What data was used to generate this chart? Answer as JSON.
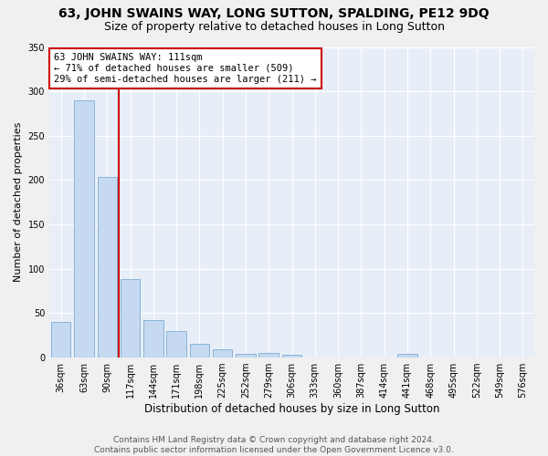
{
  "title": "63, JOHN SWAINS WAY, LONG SUTTON, SPALDING, PE12 9DQ",
  "subtitle": "Size of property relative to detached houses in Long Sutton",
  "xlabel": "Distribution of detached houses by size in Long Sutton",
  "ylabel": "Number of detached properties",
  "bar_labels": [
    "36sqm",
    "63sqm",
    "90sqm",
    "117sqm",
    "144sqm",
    "171sqm",
    "198sqm",
    "225sqm",
    "252sqm",
    "279sqm",
    "306sqm",
    "333sqm",
    "360sqm",
    "387sqm",
    "414sqm",
    "441sqm",
    "468sqm",
    "495sqm",
    "522sqm",
    "549sqm",
    "576sqm"
  ],
  "bar_values": [
    40,
    290,
    204,
    88,
    42,
    30,
    16,
    9,
    4,
    5,
    3,
    0,
    0,
    0,
    0,
    4,
    0,
    0,
    0,
    0,
    0
  ],
  "bar_color": "#c5d9f0",
  "bar_edgecolor": "#7aadd4",
  "vline_color": "#cc0000",
  "annotation_text": "63 JOHN SWAINS WAY: 111sqm\n← 71% of detached houses are smaller (509)\n29% of semi-detached houses are larger (211) →",
  "annotation_box_color": "#ffffff",
  "annotation_box_edgecolor": "#cc0000",
  "ylim": [
    0,
    350
  ],
  "yticks": [
    0,
    50,
    100,
    150,
    200,
    250,
    300,
    350
  ],
  "footnote": "Contains HM Land Registry data © Crown copyright and database right 2024.\nContains public sector information licensed under the Open Government Licence v3.0.",
  "bg_color": "#e8eef8",
  "grid_color": "#ffffff",
  "title_fontsize": 10,
  "subtitle_fontsize": 9,
  "xlabel_fontsize": 8.5,
  "ylabel_fontsize": 8,
  "tick_fontsize": 7,
  "annot_fontsize": 7.5,
  "footnote_fontsize": 6.5
}
